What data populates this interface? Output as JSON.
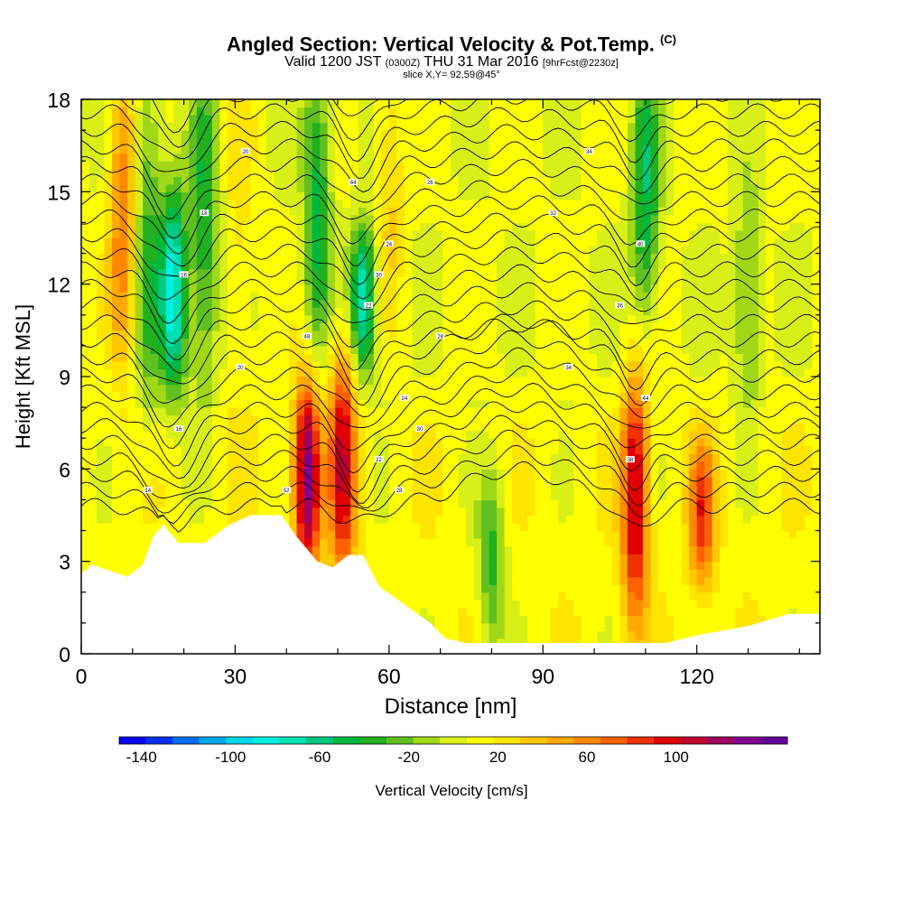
{
  "header": {
    "title": "Angled Section: Vertical Velocity & Pot.Temp.",
    "title_unit": "(C)",
    "valid_prefix": "Valid 1200 JST",
    "valid_utc": "(0300Z)",
    "valid_date": "THU 31 Mar 2016",
    "forecast": "[9hrFcst@2230z]",
    "slice": "slice X,Y= 92,59@45°"
  },
  "colors": {
    "scale": [
      "#0000ee",
      "#0030f0",
      "#0070f0",
      "#00a8f0",
      "#00d8f0",
      "#00f0e0",
      "#00e0b0",
      "#00c880",
      "#00b840",
      "#20b020",
      "#60c020",
      "#a0d818",
      "#d8f018",
      "#ffff00",
      "#ffe400",
      "#ffc800",
      "#ffa800",
      "#ff8800",
      "#ff6000",
      "#f03000",
      "#e00000",
      "#c00030",
      "#a00060",
      "#800090",
      "#600098"
    ],
    "terrain": "#ffffff",
    "contour": "#000000"
  },
  "chart_data": {
    "type": "heatmap",
    "title": "Angled Section: Vertical Velocity & Pot.Temp.",
    "xlabel": "Distance [nm]",
    "ylabel": "Height [Kft MSL]",
    "colorbar_label": "Vertical Velocity [cm/s]",
    "x_range": [
      0,
      144
    ],
    "y_range": [
      0,
      18
    ],
    "x_ticks": [
      0,
      30,
      60,
      90,
      120
    ],
    "y_ticks": [
      0,
      3,
      6,
      9,
      12,
      15,
      18
    ],
    "colorbar_ticks": [
      -140,
      -100,
      -60,
      -20,
      20,
      60,
      100
    ],
    "colorbar_range": [
      -150,
      150
    ],
    "vertical_velocity_cells": [
      {
        "x": 8,
        "y0": 10.5,
        "y1": 18,
        "v": 55
      },
      {
        "x": 13,
        "y0": 9,
        "y1": 18,
        "v": -40
      },
      {
        "x": 18,
        "y0": 9.5,
        "y1": 14,
        "v": -95
      },
      {
        "x": 24,
        "y0": 10,
        "y1": 18,
        "v": -50
      },
      {
        "x": 31,
        "y0": 9,
        "y1": 18,
        "v": 15
      },
      {
        "x": 44,
        "y0": 3.5,
        "y1": 8,
        "v": 120
      },
      {
        "x": 51,
        "y0": 3.5,
        "y1": 9,
        "v": 90
      },
      {
        "x": 46,
        "y0": 11,
        "y1": 18,
        "v": -55
      },
      {
        "x": 55,
        "y0": 10,
        "y1": 13,
        "v": -85
      },
      {
        "x": 60,
        "y0": 12,
        "y1": 18,
        "v": 25
      },
      {
        "x": 80,
        "y0": 1,
        "y1": 5,
        "v": -45
      },
      {
        "x": 108,
        "y0": 2,
        "y1": 8,
        "v": 95
      },
      {
        "x": 110,
        "y0": 12,
        "y1": 18,
        "v": -60
      },
      {
        "x": 121,
        "y0": 3,
        "y1": 6,
        "v": 70
      },
      {
        "x": 130,
        "y0": 9,
        "y1": 14,
        "v": -35
      }
    ],
    "terrain_height_kft": [
      [
        0,
        2.6
      ],
      [
        2,
        2.9
      ],
      [
        9,
        2.5
      ],
      [
        12,
        2.9
      ],
      [
        14,
        3.8
      ],
      [
        16,
        4.2
      ],
      [
        19,
        3.6
      ],
      [
        24,
        3.6
      ],
      [
        29,
        4.2
      ],
      [
        33,
        4.5
      ],
      [
        39,
        4.5
      ],
      [
        42,
        3.8
      ],
      [
        46,
        3.0
      ],
      [
        49,
        2.8
      ],
      [
        52,
        3.2
      ],
      [
        55,
        3.2
      ],
      [
        58,
        2.2
      ],
      [
        63,
        1.6
      ],
      [
        68,
        1.0
      ],
      [
        71,
        0.5
      ],
      [
        75,
        0.35
      ],
      [
        100,
        0.35
      ],
      [
        114,
        0.35
      ],
      [
        120,
        0.6
      ],
      [
        130,
        0.9
      ],
      [
        138,
        1.3
      ],
      [
        144,
        1.3
      ]
    ],
    "theta_contour_labels": [
      "14",
      "16",
      "16",
      "18",
      "20",
      "20",
      "22",
      "22",
      "24",
      "24",
      "26",
      "28",
      "28",
      "30",
      "30",
      "32",
      "34",
      "34",
      "36",
      "38",
      "40",
      "44",
      "44",
      "48",
      "52"
    ]
  }
}
